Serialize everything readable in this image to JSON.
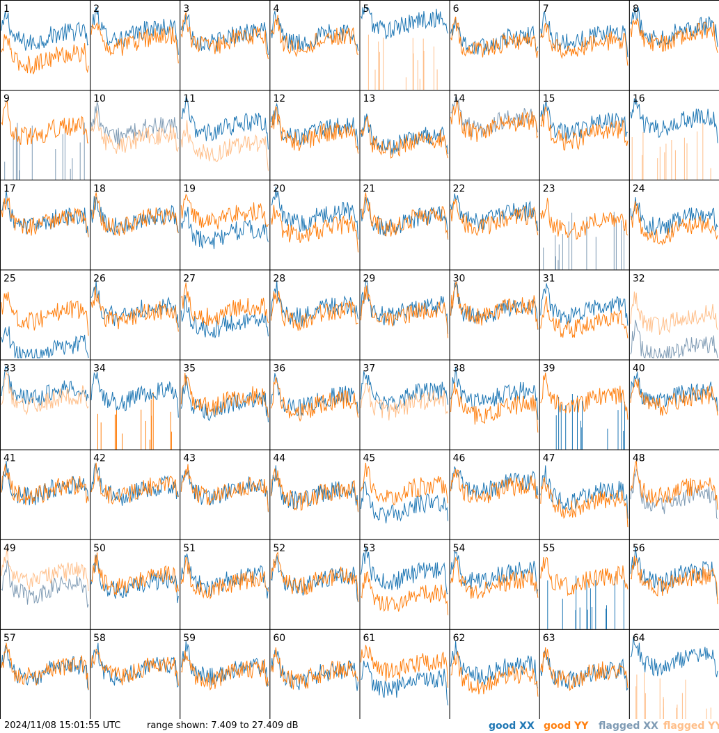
{
  "footer": {
    "timestamp": "2024/11/08 15:01:55 UTC",
    "range_shown": "range shown: 7.409 to 27.409 dB"
  },
  "legend": [
    {
      "label": "good XX",
      "color": "#1f77b4"
    },
    {
      "label": "good YY",
      "color": "#ff7f0e"
    },
    {
      "label": "flagged XX",
      "color": "#7f9bb4"
    },
    {
      "label": "flagged YY",
      "color": "#ffbf8a"
    }
  ],
  "chart_data": {
    "type": "line",
    "layout": "small-multiples 8x8",
    "ylim": [
      7.409,
      27.409
    ],
    "units": "dB",
    "panels": [
      {
        "id": "1",
        "xx": "good",
        "yy": "good",
        "xx_level": 0.55,
        "yy_level": 0.3,
        "xx_top": false
      },
      {
        "id": "2",
        "xx": "good",
        "yy": "good",
        "xx_level": 0.6,
        "yy_level": 0.5,
        "xx_top": false
      },
      {
        "id": "3",
        "xx": "good",
        "yy": "good",
        "xx_level": 0.55,
        "yy_level": 0.5,
        "xx_top": false
      },
      {
        "id": "4",
        "xx": "good",
        "yy": "good",
        "xx_level": 0.55,
        "yy_level": 0.5,
        "xx_top": false
      },
      {
        "id": "5",
        "xx": "good",
        "yy": "flagged-spikes",
        "xx_level": 0.7,
        "yy_level": 0.05,
        "xx_top": true
      },
      {
        "id": "6",
        "xx": "good",
        "yy": "good",
        "xx_level": 0.5,
        "yy_level": 0.45,
        "xx_top": false
      },
      {
        "id": "7",
        "xx": "good",
        "yy": "good",
        "xx_level": 0.55,
        "yy_level": 0.45,
        "xx_top": false
      },
      {
        "id": "8",
        "xx": "good",
        "yy": "good",
        "xx_level": 0.62,
        "yy_level": 0.55,
        "xx_top": false
      },
      {
        "id": "9",
        "xx": "flagged-spikes",
        "yy": "good",
        "xx_level": 0.05,
        "yy_level": 0.5,
        "xx_top": false
      },
      {
        "id": "10",
        "xx": "flagged",
        "yy": "flagged",
        "xx_level": 0.5,
        "yy_level": 0.4,
        "xx_top": false
      },
      {
        "id": "11",
        "xx": "good",
        "yy": "flagged",
        "xx_level": 0.55,
        "yy_level": 0.3,
        "xx_top": false
      },
      {
        "id": "12",
        "xx": "good",
        "yy": "good",
        "xx_level": 0.5,
        "yy_level": 0.45,
        "xx_top": false
      },
      {
        "id": "13",
        "xx": "good",
        "yy": "good",
        "xx_level": 0.4,
        "yy_level": 0.35,
        "xx_top": false
      },
      {
        "id": "14",
        "xx": "flagged",
        "yy": "good",
        "xx_level": 0.6,
        "yy_level": 0.55,
        "xx_top": false
      },
      {
        "id": "15",
        "xx": "good",
        "yy": "good",
        "xx_level": 0.55,
        "yy_level": 0.45,
        "xx_top": false
      },
      {
        "id": "16",
        "xx": "good",
        "yy": "flagged-spikes",
        "xx_level": 0.6,
        "yy_level": 0.05,
        "xx_top": true
      },
      {
        "id": "17",
        "xx": "good",
        "yy": "good",
        "xx_level": 0.5,
        "yy_level": 0.5,
        "xx_top": false
      },
      {
        "id": "18",
        "xx": "good",
        "yy": "good",
        "xx_level": 0.5,
        "yy_level": 0.5,
        "xx_top": false
      },
      {
        "id": "19",
        "xx": "good",
        "yy": "good",
        "xx_level": 0.35,
        "yy_level": 0.55,
        "xx_top": false
      },
      {
        "id": "20",
        "xx": "good",
        "yy": "good",
        "xx_level": 0.55,
        "yy_level": 0.4,
        "xx_top": false
      },
      {
        "id": "21",
        "xx": "good",
        "yy": "good",
        "xx_level": 0.5,
        "yy_level": 0.5,
        "xx_top": false
      },
      {
        "id": "22",
        "xx": "good",
        "yy": "good",
        "xx_level": 0.55,
        "yy_level": 0.5,
        "xx_top": false
      },
      {
        "id": "23",
        "xx": "flagged-spikes",
        "yy": "good",
        "xx_level": 0.05,
        "yy_level": 0.45,
        "xx_top": false
      },
      {
        "id": "24",
        "xx": "good",
        "yy": "good",
        "xx_level": 0.5,
        "yy_level": 0.4,
        "xx_top": false
      },
      {
        "id": "25",
        "xx": "good",
        "yy": "good",
        "xx_level": 0.05,
        "yy_level": 0.45,
        "xx_top": false
      },
      {
        "id": "26",
        "xx": "good",
        "yy": "good",
        "xx_level": 0.5,
        "yy_level": 0.45,
        "xx_top": false
      },
      {
        "id": "27",
        "xx": "good",
        "yy": "good",
        "xx_level": 0.35,
        "yy_level": 0.5,
        "xx_top": false
      },
      {
        "id": "28",
        "xx": "good",
        "yy": "good",
        "xx_level": 0.5,
        "yy_level": 0.45,
        "xx_top": false
      },
      {
        "id": "29",
        "xx": "good",
        "yy": "good",
        "xx_level": 0.5,
        "yy_level": 0.45,
        "xx_top": false
      },
      {
        "id": "30",
        "xx": "good",
        "yy": "good",
        "xx_level": 0.5,
        "yy_level": 0.5,
        "xx_top": false
      },
      {
        "id": "31",
        "xx": "good",
        "yy": "good",
        "xx_level": 0.5,
        "yy_level": 0.35,
        "xx_top": false
      },
      {
        "id": "32",
        "xx": "flagged",
        "yy": "flagged",
        "xx_level": 0.05,
        "yy_level": 0.4,
        "xx_top": false
      },
      {
        "id": "33",
        "xx": "good",
        "yy": "flagged",
        "xx_level": 0.6,
        "yy_level": 0.5,
        "xx_top": false
      },
      {
        "id": "34",
        "xx": "good",
        "yy": "good-spikes",
        "xx_level": 0.55,
        "yy_level": 0.05,
        "xx_top": true
      },
      {
        "id": "35",
        "xx": "good",
        "yy": "good",
        "xx_level": 0.45,
        "yy_level": 0.5,
        "xx_top": false
      },
      {
        "id": "36",
        "xx": "good",
        "yy": "good",
        "xx_level": 0.5,
        "yy_level": 0.45,
        "xx_top": false
      },
      {
        "id": "37",
        "xx": "good",
        "yy": "flagged",
        "xx_level": 0.55,
        "yy_level": 0.45,
        "xx_top": false
      },
      {
        "id": "38",
        "xx": "good",
        "yy": "good",
        "xx_level": 0.55,
        "yy_level": 0.4,
        "xx_top": false
      },
      {
        "id": "39",
        "xx": "good-spikes",
        "yy": "good",
        "xx_level": 0.05,
        "yy_level": 0.5,
        "xx_top": false
      },
      {
        "id": "40",
        "xx": "good",
        "yy": "good",
        "xx_level": 0.55,
        "yy_level": 0.5,
        "xx_top": false
      },
      {
        "id": "41",
        "xx": "good",
        "yy": "good",
        "xx_level": 0.5,
        "yy_level": 0.5,
        "xx_top": false
      },
      {
        "id": "42",
        "xx": "good",
        "yy": "good",
        "xx_level": 0.5,
        "yy_level": 0.5,
        "xx_top": false
      },
      {
        "id": "43",
        "xx": "good",
        "yy": "good",
        "xx_level": 0.5,
        "yy_level": 0.5,
        "xx_top": false
      },
      {
        "id": "44",
        "xx": "good",
        "yy": "good",
        "xx_level": 0.45,
        "yy_level": 0.45,
        "xx_top": false
      },
      {
        "id": "45",
        "xx": "good",
        "yy": "good",
        "xx_level": 0.3,
        "yy_level": 0.5,
        "xx_top": false
      },
      {
        "id": "46",
        "xx": "good",
        "yy": "good",
        "xx_level": 0.55,
        "yy_level": 0.5,
        "xx_top": false
      },
      {
        "id": "47",
        "xx": "good",
        "yy": "good",
        "xx_level": 0.45,
        "yy_level": 0.35,
        "xx_top": false
      },
      {
        "id": "48",
        "xx": "flagged",
        "yy": "good",
        "xx_level": 0.4,
        "yy_level": 0.5,
        "xx_top": false
      },
      {
        "id": "49",
        "xx": "flagged",
        "yy": "flagged",
        "xx_level": 0.4,
        "yy_level": 0.55,
        "xx_top": false
      },
      {
        "id": "50",
        "xx": "good",
        "yy": "good",
        "xx_level": 0.45,
        "yy_level": 0.5,
        "xx_top": false
      },
      {
        "id": "51",
        "xx": "good",
        "yy": "good",
        "xx_level": 0.5,
        "yy_level": 0.45,
        "xx_top": false
      },
      {
        "id": "52",
        "xx": "good",
        "yy": "good",
        "xx_level": 0.5,
        "yy_level": 0.5,
        "xx_top": false
      },
      {
        "id": "53",
        "xx": "good",
        "yy": "good",
        "xx_level": 0.55,
        "yy_level": 0.3,
        "xx_top": false
      },
      {
        "id": "54",
        "xx": "good",
        "yy": "good",
        "xx_level": 0.55,
        "yy_level": 0.45,
        "xx_top": false
      },
      {
        "id": "55",
        "xx": "good-spikes",
        "yy": "good",
        "xx_level": 0.05,
        "yy_level": 0.5,
        "xx_top": false
      },
      {
        "id": "56",
        "xx": "good",
        "yy": "good",
        "xx_level": 0.55,
        "yy_level": 0.5,
        "xx_top": false
      },
      {
        "id": "57",
        "xx": "good",
        "yy": "good",
        "xx_level": 0.5,
        "yy_level": 0.5,
        "xx_top": false
      },
      {
        "id": "58",
        "xx": "good",
        "yy": "good",
        "xx_level": 0.5,
        "yy_level": 0.5,
        "xx_top": false
      },
      {
        "id": "59",
        "xx": "good",
        "yy": "good",
        "xx_level": 0.5,
        "yy_level": 0.45,
        "xx_top": false
      },
      {
        "id": "60",
        "xx": "good",
        "yy": "good",
        "xx_level": 0.45,
        "yy_level": 0.45,
        "xx_top": false
      },
      {
        "id": "61",
        "xx": "good",
        "yy": "good",
        "xx_level": 0.35,
        "yy_level": 0.55,
        "xx_top": false
      },
      {
        "id": "62",
        "xx": "good",
        "yy": "good",
        "xx_level": 0.5,
        "yy_level": 0.4,
        "xx_top": false
      },
      {
        "id": "63",
        "xx": "good",
        "yy": "good",
        "xx_level": 0.45,
        "yy_level": 0.45,
        "xx_top": false
      },
      {
        "id": "64",
        "xx": "good",
        "yy": "flagged-spikes",
        "xx_level": 0.6,
        "yy_level": 0.05,
        "xx_top": true
      }
    ]
  }
}
